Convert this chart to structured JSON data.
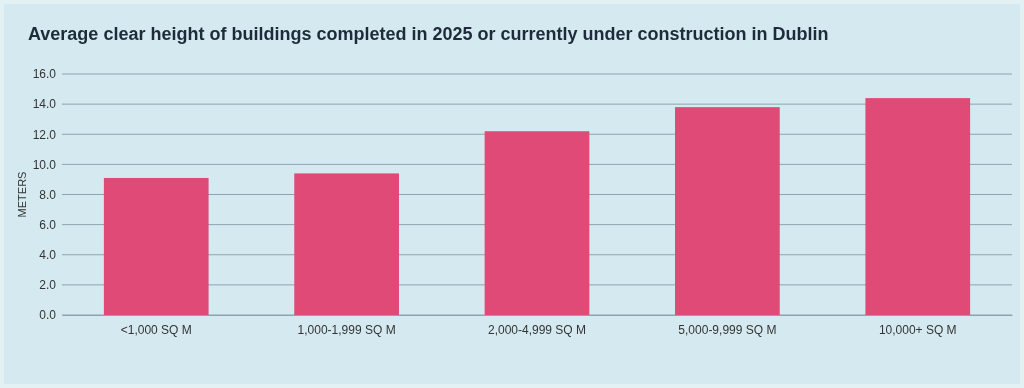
{
  "chart_data": {
    "type": "bar",
    "title": "Average clear height of buildings completed in 2025 or currently under construction in Dublin",
    "ylabel": "METERS",
    "categories": [
      "<1,000 SQ M",
      "1,000-1,999 SQ M",
      "2,000-4,999 SQ M",
      "5,000-9,999 SQ M",
      "10,000+ SQ M"
    ],
    "values": [
      9.1,
      9.4,
      12.2,
      13.8,
      14.4
    ],
    "color": "#e04a77",
    "ylim": [
      0,
      16
    ],
    "yticks": [
      {
        "value": 0,
        "label": "0.0"
      },
      {
        "value": 2,
        "label": "2.0"
      },
      {
        "value": 4,
        "label": "4.0"
      },
      {
        "value": 6,
        "label": "6.0"
      },
      {
        "value": 8,
        "label": "8.0"
      },
      {
        "value": 10,
        "label": "10.0"
      },
      {
        "value": 12,
        "label": "12.0"
      },
      {
        "value": 14,
        "label": "14.0"
      },
      {
        "value": 16,
        "label": "16.0"
      }
    ],
    "grid": "y"
  }
}
